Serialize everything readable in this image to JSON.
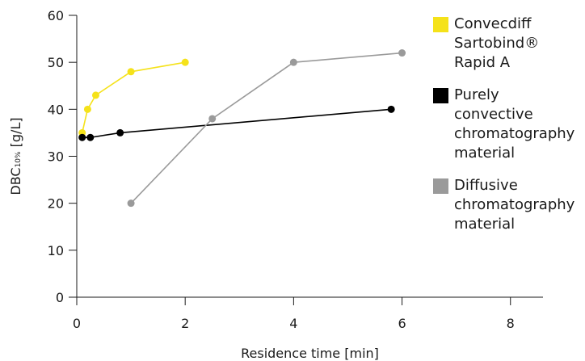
{
  "chart_data": {
    "type": "line",
    "xlabel": "Residence time [min]",
    "ylabel_main": "DBC",
    "ylabel_sub": "10%",
    "ylabel_unit": " [g/L]",
    "xlim": [
      0,
      8.6
    ],
    "ylim": [
      0,
      60
    ],
    "xticks": [
      0,
      2,
      4,
      6,
      8
    ],
    "yticks": [
      0,
      10,
      20,
      30,
      40,
      50,
      60
    ],
    "grid": false,
    "legend_position": "right",
    "series": [
      {
        "name": "Convecdiff\nSartobind® \nRapid A",
        "color": "#f5e21a",
        "x": [
          0.1,
          0.2,
          0.35,
          1.0,
          2.0
        ],
        "y": [
          35,
          40,
          43,
          48,
          50
        ]
      },
      {
        "name": "Purely\nconvective\nchromatography\nmaterial",
        "color": "#000000",
        "x": [
          0.1,
          0.25,
          0.8,
          5.8
        ],
        "y": [
          34,
          34,
          35,
          40
        ]
      },
      {
        "name": "Diffusive\nchromatography\nmaterial",
        "color": "#9a9a9a",
        "x": [
          1.0,
          2.5,
          4.0,
          6.0
        ],
        "y": [
          20,
          38,
          50,
          52
        ]
      }
    ]
  }
}
